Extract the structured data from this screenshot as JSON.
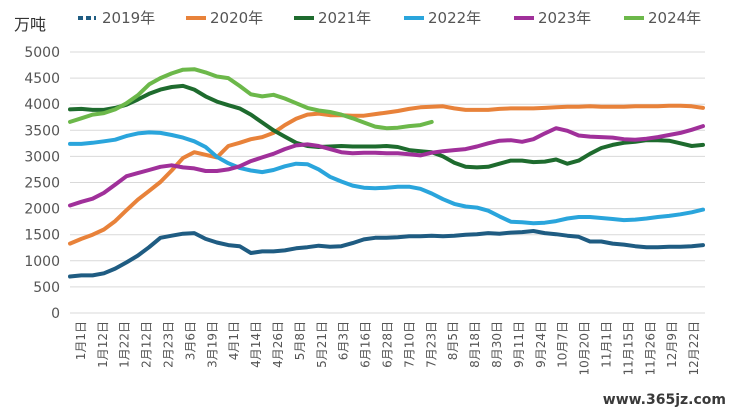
{
  "chart_data": {
    "type": "line",
    "unit_label": "万吨",
    "ylim": [
      0,
      5000
    ],
    "yticks": [
      0,
      500,
      1000,
      1500,
      2000,
      2500,
      3000,
      3500,
      4000,
      4500,
      5000
    ],
    "grid": true,
    "legend_position": "top",
    "x_tick_labels": [
      "1月1日",
      "1月12日",
      "1月22日",
      "2月12日",
      "2月23日",
      "3月6日",
      "3月19日",
      "4月1日",
      "4月14日",
      "4月26日",
      "5月8日",
      "5月21日",
      "6月3日",
      "6月16日",
      "6月28日",
      "7月10日",
      "7月23日",
      "8月5日",
      "8月18日",
      "8月30日",
      "9月11日",
      "9月24日",
      "10月7日",
      "10月20日",
      "11月1日",
      "11月15日",
      "11月26日",
      "12月9日",
      "12月22日"
    ],
    "series": [
      {
        "name": "2019年",
        "color": "#1f5c82",
        "values": [
          700,
          720,
          720,
          760,
          850,
          970,
          1100,
          1260,
          1440,
          1480,
          1520,
          1530,
          1420,
          1350,
          1300,
          1280,
          1150,
          1180,
          1180,
          1200,
          1240,
          1260,
          1290,
          1270,
          1280,
          1340,
          1410,
          1440,
          1440,
          1450,
          1470,
          1470,
          1480,
          1470,
          1480,
          1500,
          1510,
          1530,
          1520,
          1540,
          1550,
          1570,
          1530,
          1510,
          1480,
          1460,
          1370,
          1370,
          1330,
          1310,
          1280,
          1260,
          1260,
          1270,
          1270,
          1280,
          1300
        ]
      },
      {
        "name": "2020年",
        "color": "#e8823a",
        "values": [
          1330,
          1420,
          1500,
          1600,
          1760,
          1970,
          2170,
          2340,
          2510,
          2730,
          2970,
          3080,
          3030,
          2980,
          3200,
          3260,
          3330,
          3370,
          3450,
          3600,
          3720,
          3800,
          3820,
          3790,
          3790,
          3780,
          3780,
          3810,
          3840,
          3870,
          3910,
          3940,
          3950,
          3960,
          3920,
          3890,
          3890,
          3890,
          3910,
          3920,
          3920,
          3920,
          3930,
          3940,
          3950,
          3950,
          3960,
          3950,
          3950,
          3950,
          3960,
          3960,
          3960,
          3970,
          3970,
          3960,
          3930
        ]
      },
      {
        "name": "2021年",
        "color": "#1e6b2e",
        "values": [
          3900,
          3910,
          3890,
          3890,
          3930,
          3990,
          4090,
          4200,
          4280,
          4330,
          4350,
          4280,
          4150,
          4050,
          3980,
          3920,
          3800,
          3650,
          3500,
          3380,
          3260,
          3200,
          3180,
          3190,
          3200,
          3190,
          3190,
          3190,
          3200,
          3180,
          3120,
          3100,
          3080,
          3000,
          2880,
          2800,
          2790,
          2800,
          2860,
          2920,
          2920,
          2890,
          2900,
          2940,
          2860,
          2920,
          3050,
          3160,
          3220,
          3260,
          3280,
          3310,
          3310,
          3300,
          3250,
          3200,
          3220
        ]
      },
      {
        "name": "2022年",
        "color": "#2aa5dc",
        "values": [
          3240,
          3240,
          3260,
          3290,
          3320,
          3390,
          3440,
          3460,
          3450,
          3410,
          3360,
          3290,
          3180,
          2990,
          2870,
          2780,
          2730,
          2700,
          2740,
          2810,
          2860,
          2850,
          2750,
          2610,
          2520,
          2440,
          2400,
          2390,
          2400,
          2420,
          2420,
          2380,
          2290,
          2180,
          2090,
          2040,
          2020,
          1960,
          1850,
          1750,
          1740,
          1720,
          1730,
          1760,
          1810,
          1840,
          1840,
          1820,
          1800,
          1780,
          1790,
          1810,
          1840,
          1860,
          1890,
          1930,
          1980
        ]
      },
      {
        "name": "2023年",
        "color": "#a0309a",
        "values": [
          2060,
          2130,
          2190,
          2300,
          2460,
          2620,
          2680,
          2740,
          2800,
          2830,
          2790,
          2770,
          2720,
          2720,
          2750,
          2810,
          2910,
          2980,
          3050,
          3140,
          3210,
          3230,
          3200,
          3140,
          3080,
          3060,
          3070,
          3070,
          3060,
          3060,
          3040,
          3020,
          3070,
          3100,
          3120,
          3140,
          3190,
          3250,
          3300,
          3310,
          3280,
          3330,
          3440,
          3540,
          3490,
          3400,
          3380,
          3370,
          3360,
          3330,
          3320,
          3340,
          3370,
          3410,
          3450,
          3510,
          3580
        ]
      },
      {
        "name": "2024年",
        "color": "#6cb84a",
        "values": [
          3660,
          3730,
          3800,
          3830,
          3900,
          4020,
          4170,
          4380,
          4500,
          4590,
          4660,
          4670,
          4610,
          4530,
          4500,
          4350,
          4190,
          4150,
          4180,
          4110,
          4020,
          3930,
          3880,
          3850,
          3800,
          3730,
          3650,
          3570,
          3540,
          3550,
          3580,
          3600,
          3660
        ]
      }
    ]
  },
  "watermark": "www.365jz.com"
}
